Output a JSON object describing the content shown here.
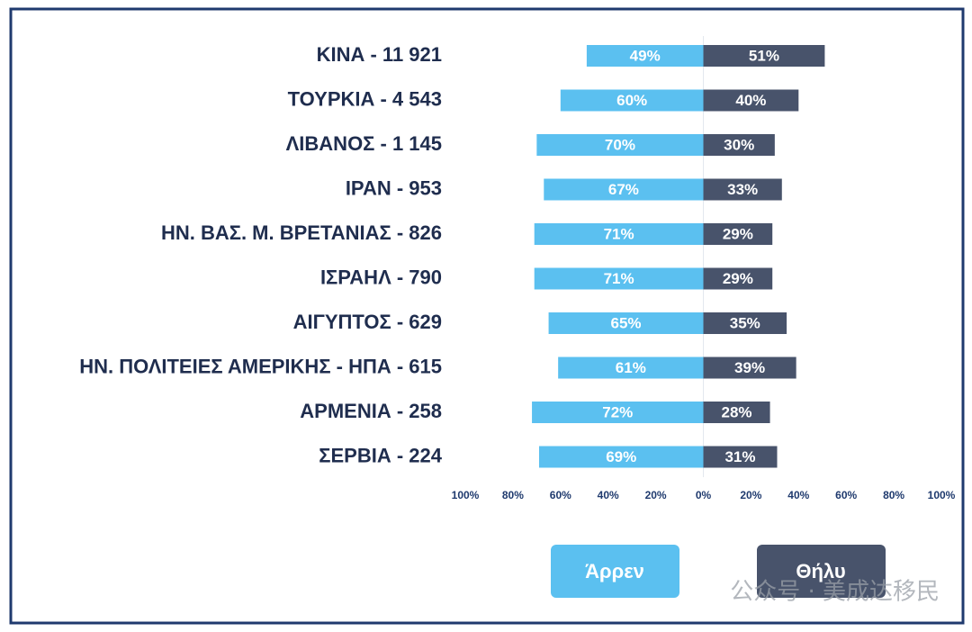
{
  "chart_data": {
    "type": "diverging-bar",
    "categories": [
      "ΚΙΝΑ - 11 921",
      "ΤΟΥΡΚΙΑ - 4 543",
      "ΛΙΒΑΝΟΣ - 1 145",
      "ΙΡΑΝ - 953",
      "ΗΝ. ΒΑΣ. Μ. ΒΡΕΤΑΝΙΑΣ - 826",
      "ΙΣΡΑΗΛ - 790",
      "ΑΙΓΥΠΤΟΣ - 629",
      "ΗΝ. ΠΟΛΙΤΕΙΕΣ ΑΜΕΡΙΚΗΣ - ΗΠΑ - 615",
      "ΑΡΜΕΝΙΑ - 258",
      "ΣΕΡΒΙΑ - 224"
    ],
    "series": [
      {
        "name": "Άρρεν",
        "color": "#5bc0f0",
        "side": "left",
        "values": [
          49,
          60,
          70,
          67,
          71,
          71,
          65,
          61,
          72,
          69
        ],
        "value_labels": [
          "49%",
          "60%",
          "70%",
          "67%",
          "71%",
          "71%",
          "65%",
          "61%",
          "72%",
          "69%"
        ]
      },
      {
        "name": "Θήλυ",
        "color": "#48536b",
        "side": "right",
        "values": [
          51,
          40,
          30,
          33,
          29,
          29,
          35,
          39,
          28,
          31
        ],
        "value_labels": [
          "51%",
          "40%",
          "30%",
          "33%",
          "29%",
          "29%",
          "35%",
          "39%",
          "28%",
          "31%"
        ]
      }
    ],
    "xlim": [
      -100,
      100
    ],
    "xticks": [
      {
        "value": -100,
        "label": "100%"
      },
      {
        "value": -80,
        "label": "80%"
      },
      {
        "value": -60,
        "label": "60%"
      },
      {
        "value": -40,
        "label": "40%"
      },
      {
        "value": -20,
        "label": "20%"
      },
      {
        "value": 0,
        "label": "0%"
      },
      {
        "value": 20,
        "label": "20%"
      },
      {
        "value": 40,
        "label": "40%"
      },
      {
        "value": 60,
        "label": "60%"
      },
      {
        "value": 80,
        "label": "80%"
      },
      {
        "value": 100,
        "label": "100%"
      }
    ],
    "watermark": "公众号 · 美成达移民"
  }
}
